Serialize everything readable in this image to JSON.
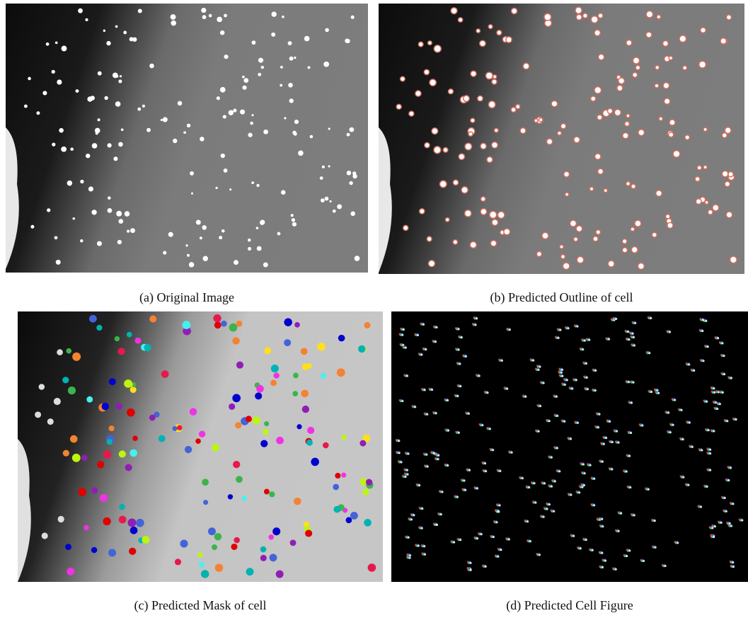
{
  "figure": {
    "panels": [
      {
        "caption": "(a) Original Image"
      },
      {
        "caption": "(b) Predicted Outline of cell"
      },
      {
        "caption": "(c) Predicted Mask of cell"
      },
      {
        "caption": "(d) Predicted Cell Figure"
      }
    ]
  }
}
